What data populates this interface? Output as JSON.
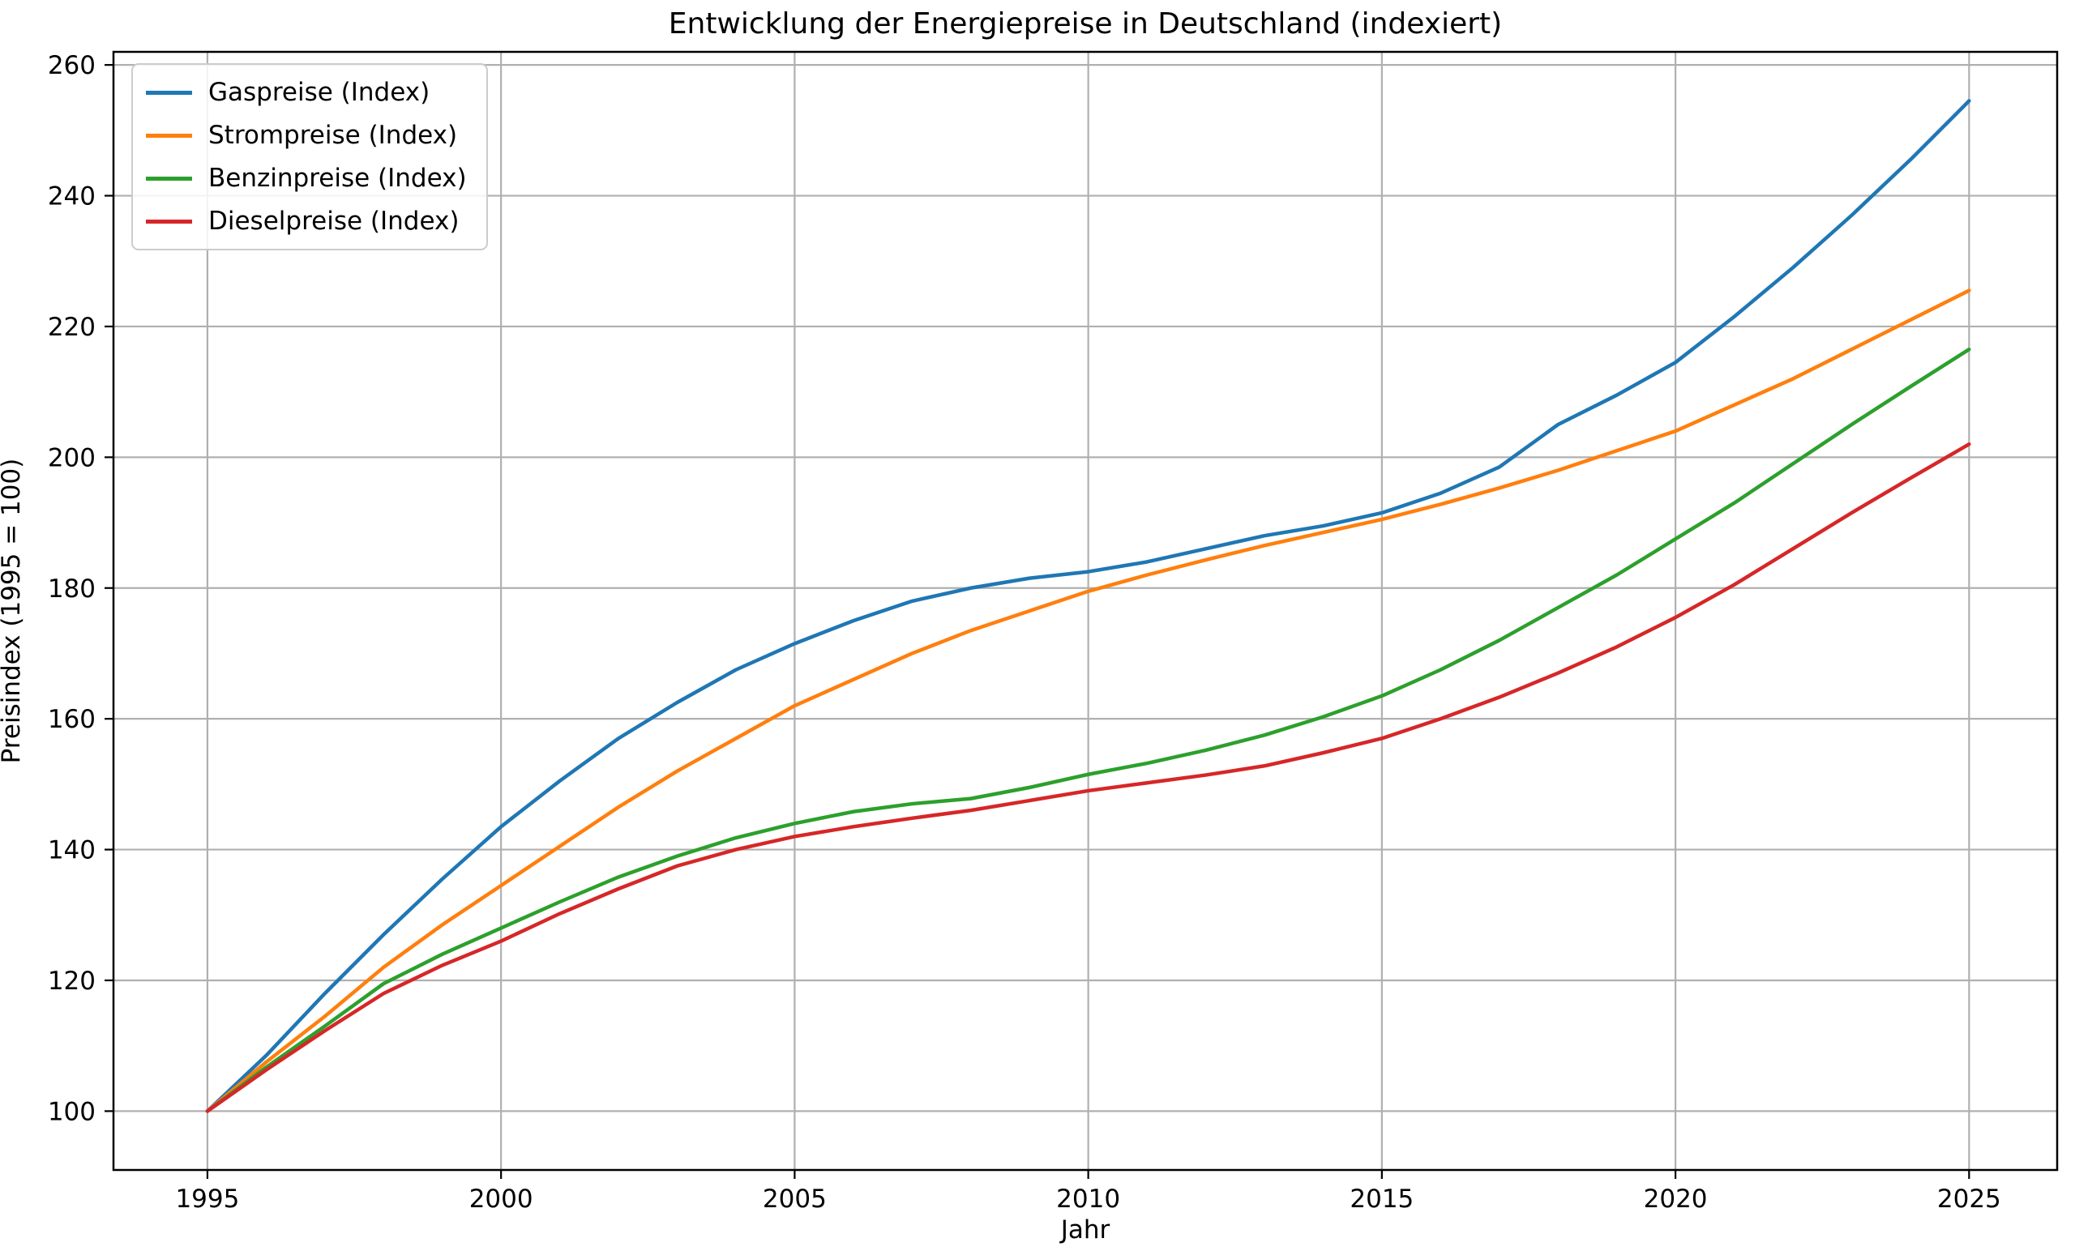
{
  "chart_data": {
    "type": "line",
    "title": "Entwicklung der Energiepreise in Deutschland (indexiert)",
    "xlabel": "Jahr",
    "ylabel": "Preisindex (1995 = 100)",
    "x": [
      1995,
      1996,
      1997,
      1998,
      1999,
      2000,
      2001,
      2002,
      2003,
      2004,
      2005,
      2006,
      2007,
      2008,
      2009,
      2010,
      2011,
      2012,
      2013,
      2014,
      2015,
      2016,
      2017,
      2018,
      2019,
      2020,
      2021,
      2022,
      2023,
      2024,
      2025
    ],
    "series": [
      {
        "name": "Gaspreise (Index)",
        "color": "#1f77b4",
        "values": [
          100,
          108.5,
          118,
          127,
          135.5,
          143.5,
          150.5,
          157,
          162.5,
          167.5,
          171.5,
          175,
          178,
          180,
          181.5,
          182.5,
          184,
          186,
          188,
          189.5,
          191.5,
          194.5,
          198.5,
          205,
          209.5,
          214.5,
          221.5,
          229,
          237,
          245.5,
          254.5
        ]
      },
      {
        "name": "Strompreise (Index)",
        "color": "#ff7f0e",
        "values": [
          100,
          107.5,
          114.5,
          122,
          128.5,
          134.5,
          140.5,
          146.5,
          152,
          157,
          162,
          166,
          170,
          173.5,
          176.5,
          179.5,
          182,
          184.3,
          186.5,
          188.5,
          190.5,
          192.8,
          195.3,
          198,
          201,
          204,
          208,
          212,
          216.5,
          221,
          225.5
        ]
      },
      {
        "name": "Benzinpreise (Index)",
        "color": "#2ca02c",
        "values": [
          100,
          106.7,
          113,
          119.5,
          124,
          128,
          132,
          135.8,
          139,
          141.8,
          144,
          145.8,
          147,
          147.8,
          149.5,
          151.5,
          153.2,
          155.2,
          157.5,
          160.3,
          163.5,
          167.5,
          172,
          177,
          182,
          187.5,
          193,
          199,
          205,
          210.8,
          216.5
        ]
      },
      {
        "name": "Dieselpreise (Index)",
        "color": "#d62728",
        "values": [
          100,
          106.3,
          112.3,
          118,
          122.3,
          126,
          130.2,
          134,
          137.5,
          140,
          142,
          143.5,
          144.8,
          146,
          147.5,
          149,
          150.2,
          151.4,
          152.8,
          154.8,
          157,
          160,
          163.3,
          167,
          171,
          175.5,
          180.5,
          186,
          191.5,
          196.8,
          202
        ]
      }
    ],
    "xticks": [
      1995,
      2000,
      2005,
      2010,
      2015,
      2020,
      2025
    ],
    "yticks": [
      100,
      120,
      140,
      160,
      180,
      200,
      220,
      240,
      260
    ],
    "xlim": [
      1993.4,
      2026.5
    ],
    "ylim": [
      91,
      262
    ],
    "grid": true,
    "grid_color": "#b0b0b0",
    "background": "#ffffff",
    "legend_position": "upper-left"
  }
}
